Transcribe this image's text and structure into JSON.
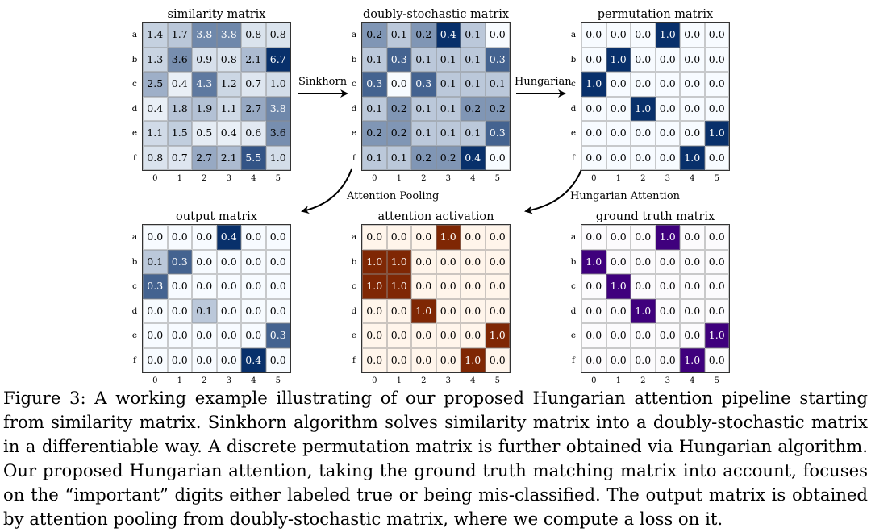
{
  "row_labels": [
    "a",
    "b",
    "c",
    "d",
    "e",
    "f"
  ],
  "col_labels": [
    "0",
    "1",
    "2",
    "3",
    "4",
    "5"
  ],
  "matrices": [
    {
      "id": "similarity",
      "title": "similarity matrix",
      "palette": "blue",
      "max": 6.7,
      "values": [
        [
          "1.4",
          "1.7",
          "3.8",
          "3.8",
          "0.8",
          "0.8"
        ],
        [
          "1.3",
          "3.6",
          "0.9",
          "0.8",
          "2.1",
          "6.7"
        ],
        [
          "2.5",
          "0.4",
          "4.3",
          "1.2",
          "0.7",
          "1.0"
        ],
        [
          "0.4",
          "1.8",
          "1.9",
          "1.1",
          "2.7",
          "3.8"
        ],
        [
          "1.1",
          "1.5",
          "0.5",
          "0.4",
          "0.6",
          "3.6"
        ],
        [
          "0.8",
          "0.7",
          "2.7",
          "2.1",
          "5.5",
          "1.0"
        ]
      ]
    },
    {
      "id": "doubly-stochastic",
      "title": "doubly-stochastic matrix",
      "palette": "blue",
      "max": 0.4,
      "values": [
        [
          "0.2",
          "0.1",
          "0.2",
          "0.4",
          "0.1",
          "0.0"
        ],
        [
          "0.1",
          "0.3",
          "0.1",
          "0.1",
          "0.1",
          "0.3"
        ],
        [
          "0.3",
          "0.0",
          "0.3",
          "0.1",
          "0.1",
          "0.1"
        ],
        [
          "0.1",
          "0.2",
          "0.1",
          "0.1",
          "0.2",
          "0.2"
        ],
        [
          "0.2",
          "0.2",
          "0.1",
          "0.1",
          "0.1",
          "0.3"
        ],
        [
          "0.1",
          "0.1",
          "0.2",
          "0.2",
          "0.4",
          "0.0"
        ]
      ]
    },
    {
      "id": "permutation",
      "title": "permutation matrix",
      "palette": "blue",
      "max": 1.0,
      "values": [
        [
          "0.0",
          "0.0",
          "0.0",
          "1.0",
          "0.0",
          "0.0"
        ],
        [
          "0.0",
          "1.0",
          "0.0",
          "0.0",
          "0.0",
          "0.0"
        ],
        [
          "1.0",
          "0.0",
          "0.0",
          "0.0",
          "0.0",
          "0.0"
        ],
        [
          "0.0",
          "0.0",
          "1.0",
          "0.0",
          "0.0",
          "0.0"
        ],
        [
          "0.0",
          "0.0",
          "0.0",
          "0.0",
          "0.0",
          "1.0"
        ],
        [
          "0.0",
          "0.0",
          "0.0",
          "0.0",
          "1.0",
          "0.0"
        ]
      ]
    },
    {
      "id": "output",
      "title": "output matrix",
      "palette": "blue",
      "max": 0.4,
      "values": [
        [
          "0.0",
          "0.0",
          "0.0",
          "0.4",
          "0.0",
          "0.0"
        ],
        [
          "0.1",
          "0.3",
          "0.0",
          "0.0",
          "0.0",
          "0.0"
        ],
        [
          "0.3",
          "0.0",
          "0.0",
          "0.0",
          "0.0",
          "0.0"
        ],
        [
          "0.0",
          "0.0",
          "0.1",
          "0.0",
          "0.0",
          "0.0"
        ],
        [
          "0.0",
          "0.0",
          "0.0",
          "0.0",
          "0.0",
          "0.3"
        ],
        [
          "0.0",
          "0.0",
          "0.0",
          "0.0",
          "0.4",
          "0.0"
        ]
      ]
    },
    {
      "id": "attention-activation",
      "title": "attention activation",
      "palette": "brown",
      "max": 1.0,
      "values": [
        [
          "0.0",
          "0.0",
          "0.0",
          "1.0",
          "0.0",
          "0.0"
        ],
        [
          "1.0",
          "1.0",
          "0.0",
          "0.0",
          "0.0",
          "0.0"
        ],
        [
          "1.0",
          "1.0",
          "0.0",
          "0.0",
          "0.0",
          "0.0"
        ],
        [
          "0.0",
          "0.0",
          "1.0",
          "0.0",
          "0.0",
          "0.0"
        ],
        [
          "0.0",
          "0.0",
          "0.0",
          "0.0",
          "0.0",
          "1.0"
        ],
        [
          "0.0",
          "0.0",
          "0.0",
          "0.0",
          "1.0",
          "0.0"
        ]
      ]
    },
    {
      "id": "ground-truth",
      "title": "ground truth matrix",
      "palette": "purple",
      "max": 1.0,
      "values": [
        [
          "0.0",
          "0.0",
          "0.0",
          "1.0",
          "0.0",
          "0.0"
        ],
        [
          "1.0",
          "0.0",
          "0.0",
          "0.0",
          "0.0",
          "0.0"
        ],
        [
          "0.0",
          "1.0",
          "0.0",
          "0.0",
          "0.0",
          "0.0"
        ],
        [
          "0.0",
          "0.0",
          "1.0",
          "0.0",
          "0.0",
          "0.0"
        ],
        [
          "0.0",
          "0.0",
          "0.0",
          "0.0",
          "0.0",
          "1.0"
        ],
        [
          "0.0",
          "0.0",
          "0.0",
          "0.0",
          "1.0",
          "0.0"
        ]
      ]
    }
  ],
  "arrows": {
    "sinkhorn": "Sinkhorn",
    "hungarian": "Hungarian",
    "attention_pooling": "Attention Pooling",
    "hungarian_attention": "Hungarian Attention"
  },
  "colors": {
    "blue_low": "#f7fbff",
    "blue_high": "#08306b",
    "brown_low": "#fff5eb",
    "brown_high": "#7f2704",
    "purple_low": "#fcfbfd",
    "purple_high": "#3f007d"
  },
  "caption": "Figure 3: A working example illustrating of our proposed Hungarian attention pipeline starting from similarity matrix. Sinkhorn algorithm solves similarity matrix into a doubly-stochastic matrix in a differentiable way. A discrete permutation matrix is further obtained via Hungarian algorithm. Our proposed Hungarian attention, taking the ground truth matching matrix into account, focuses on the “important” digits either labeled true or being mis-classified. The output matrix is obtained by attention pooling from doubly-stochastic matrix, where we compute a loss on it."
}
